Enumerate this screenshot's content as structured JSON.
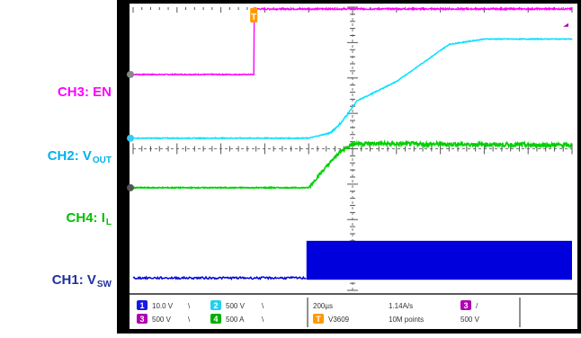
{
  "labels": [
    {
      "ch": "CH3",
      "name": "EN",
      "sub": "",
      "color": "#ff00ff"
    },
    {
      "ch": "CH2",
      "name": "V",
      "sub": "OUT",
      "color": "#00b0f0"
    },
    {
      "ch": "CH4",
      "name": "I",
      "sub": "L",
      "color": "#00c000"
    },
    {
      "ch": "CH1",
      "name": "V",
      "sub": "SW",
      "color": "#2030a0"
    }
  ],
  "status": {
    "row1": [
      {
        "id": "1",
        "color": "#1818e0",
        "text": "10.0 V",
        "unit": "\\"
      },
      {
        "id": "2",
        "color": "#22d0f0",
        "text": "500 V",
        "unit": "\\"
      },
      {
        "text": "200µs"
      },
      {
        "text": "1.14A/s"
      },
      {
        "id": "3",
        "color": "#b000b0",
        "text": "/"
      }
    ],
    "row2": [
      {
        "id": "3",
        "color": "#b000b0",
        "text": "500 V",
        "unit": "\\"
      },
      {
        "id": "4",
        "color": "#00b000",
        "text": "500 A",
        "unit": "\\"
      },
      {
        "id": "T",
        "color": "#ff9900",
        "text": "V3609"
      },
      {
        "text": "10M points"
      },
      {
        "text": "500 V"
      }
    ]
  },
  "chart_data": {
    "type": "line",
    "title": "",
    "xlabel": "",
    "ylabel": "",
    "x_divisions": 10,
    "y_divisions": 8,
    "grid": "off (dashed center axes only)",
    "trigger_marker": "T",
    "series": [
      {
        "name": "CH3: EN",
        "color": "#ff00ff",
        "kind": "step",
        "points": [
          [
            0,
            6.1
          ],
          [
            2.75,
            6.1
          ],
          [
            2.75,
            7.95
          ],
          [
            10,
            7.95
          ]
        ]
      },
      {
        "name": "CH2: VOUT",
        "color": "#00e0ff",
        "kind": "ramp",
        "points": [
          [
            0,
            4.3
          ],
          [
            4.0,
            4.3
          ],
          [
            4.5,
            4.45
          ],
          [
            4.75,
            4.75
          ],
          [
            5.1,
            5.35
          ],
          [
            6.0,
            5.9
          ],
          [
            7.2,
            6.95
          ],
          [
            8.0,
            7.1
          ],
          [
            10,
            7.1
          ]
        ]
      },
      {
        "name": "CH4: IL",
        "color": "#00d000",
        "kind": "ramp",
        "points": [
          [
            0,
            2.9
          ],
          [
            4.0,
            2.9
          ],
          [
            4.3,
            3.35
          ],
          [
            4.7,
            3.9
          ],
          [
            5.0,
            4.15
          ],
          [
            10,
            4.1
          ]
        ]
      },
      {
        "name": "CH1: VSW",
        "color": "#0000dd",
        "kind": "switching",
        "points": [
          [
            0,
            0.35
          ],
          [
            3.95,
            0.35
          ],
          [
            3.95,
            1.4
          ],
          [
            10,
            1.4
          ]
        ]
      }
    ]
  }
}
